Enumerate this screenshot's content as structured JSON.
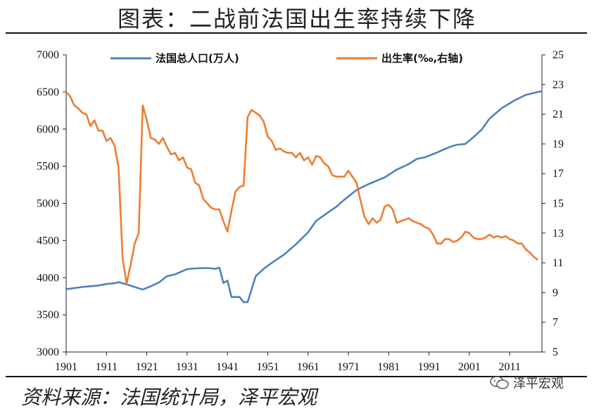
{
  "title": "图表：二战前法国出生率持续下降",
  "source": "资料来源：法国统计局，泽平宏观",
  "watermark": "泽平宏观",
  "chart_data": {
    "type": "line",
    "x_ticks": [
      1901,
      1911,
      1921,
      1931,
      1941,
      1951,
      1961,
      1971,
      1981,
      1991,
      2001,
      2011
    ],
    "xlim": [
      1901,
      2019
    ],
    "left_axis": {
      "ticks": [
        3000,
        3500,
        4000,
        4500,
        5000,
        5500,
        6000,
        6500,
        7000
      ],
      "ylim": [
        3000,
        7000
      ]
    },
    "right_axis": {
      "ticks": [
        5,
        7,
        9,
        11,
        13,
        15,
        17,
        19,
        21,
        23,
        25
      ],
      "ylim": [
        5,
        25
      ]
    },
    "series": [
      {
        "name": "法国总人口(万人)",
        "axis": "left",
        "color": "#4f81bd",
        "x": [
          1901,
          1903,
          1905,
          1907,
          1909,
          1911,
          1913,
          1914,
          1916,
          1918,
          1920,
          1922,
          1924,
          1926,
          1928,
          1931,
          1933,
          1936,
          1938,
          1939,
          1940,
          1941,
          1942,
          1944,
          1945,
          1946,
          1948,
          1950,
          1952,
          1955,
          1958,
          1961,
          1963,
          1966,
          1968,
          1970,
          1973,
          1976,
          1980,
          1983,
          1986,
          1988,
          1990,
          1993,
          1995,
          1997,
          1998,
          2000,
          2002,
          2004,
          2006,
          2009,
          2012,
          2015,
          2018,
          2019
        ],
        "y": [
          3845,
          3860,
          3875,
          3885,
          3895,
          3915,
          3925,
          3940,
          3910,
          3875,
          3840,
          3885,
          3935,
          4020,
          4045,
          4115,
          4125,
          4130,
          4120,
          4135,
          3930,
          3960,
          3740,
          3740,
          3670,
          3670,
          4020,
          4120,
          4200,
          4310,
          4450,
          4610,
          4765,
          4880,
          4955,
          5050,
          5180,
          5260,
          5350,
          5455,
          5530,
          5600,
          5620,
          5685,
          5735,
          5775,
          5790,
          5800,
          5890,
          5990,
          6140,
          6280,
          6380,
          6460,
          6500,
          6510
        ]
      },
      {
        "name": "出生率(‰,右轴)",
        "axis": "right",
        "color": "#ed7d31",
        "x": [
          1901,
          1902,
          1903,
          1904,
          1905,
          1906,
          1907,
          1908,
          1909,
          1910,
          1911,
          1912,
          1913,
          1914,
          1915,
          1916,
          1917,
          1918,
          1919,
          1920,
          1921,
          1922,
          1923,
          1924,
          1925,
          1926,
          1927,
          1928,
          1929,
          1930,
          1931,
          1932,
          1933,
          1934,
          1935,
          1936,
          1937,
          1938,
          1939,
          1940,
          1941,
          1942,
          1943,
          1944,
          1945,
          1946,
          1947,
          1948,
          1949,
          1950,
          1951,
          1952,
          1953,
          1954,
          1955,
          1956,
          1957,
          1958,
          1959,
          1960,
          1961,
          1962,
          1963,
          1964,
          1965,
          1966,
          1967,
          1968,
          1969,
          1970,
          1971,
          1972,
          1973,
          1974,
          1975,
          1976,
          1977,
          1978,
          1979,
          1980,
          1981,
          1982,
          1983,
          1984,
          1985,
          1986,
          1987,
          1988,
          1989,
          1990,
          1991,
          1992,
          1993,
          1994,
          1995,
          1996,
          1997,
          1998,
          1999,
          2000,
          2001,
          2002,
          2003,
          2004,
          2005,
          2006,
          2007,
          2008,
          2009,
          2010,
          2011,
          2012,
          2013,
          2014,
          2015,
          2016,
          2017,
          2018
        ],
        "y": [
          22.5,
          22.2,
          21.6,
          21.4,
          21.1,
          21.0,
          20.2,
          20.6,
          19.9,
          19.9,
          19.2,
          19.4,
          18.9,
          17.4,
          11.3,
          9.6,
          10.9,
          12.3,
          13.0,
          21.6,
          20.6,
          19.4,
          19.3,
          19.0,
          19.4,
          18.8,
          18.3,
          18.4,
          17.9,
          18.1,
          17.4,
          17.3,
          16.4,
          16.2,
          15.3,
          15.0,
          14.7,
          14.6,
          14.6,
          13.8,
          13.1,
          14.5,
          15.8,
          16.1,
          16.2,
          20.8,
          21.3,
          21.1,
          20.9,
          20.5,
          19.5,
          19.2,
          18.6,
          18.7,
          18.5,
          18.4,
          18.4,
          18.1,
          18.4,
          17.9,
          18.1,
          17.6,
          18.2,
          18.1,
          17.7,
          17.5,
          16.9,
          16.8,
          16.8,
          16.8,
          17.2,
          16.8,
          16.4,
          15.2,
          14.1,
          13.6,
          14.0,
          13.7,
          13.9,
          14.8,
          14.9,
          14.6,
          13.7,
          13.8,
          13.9,
          14.0,
          13.8,
          13.7,
          13.6,
          13.4,
          13.3,
          12.9,
          12.3,
          12.3,
          12.6,
          12.6,
          12.4,
          12.5,
          12.7,
          13.1,
          13.0,
          12.7,
          12.6,
          12.6,
          12.7,
          12.9,
          12.7,
          12.8,
          12.7,
          12.8,
          12.6,
          12.5,
          12.3,
          12.3,
          11.9,
          11.7,
          11.4,
          11.2
        ]
      }
    ]
  }
}
